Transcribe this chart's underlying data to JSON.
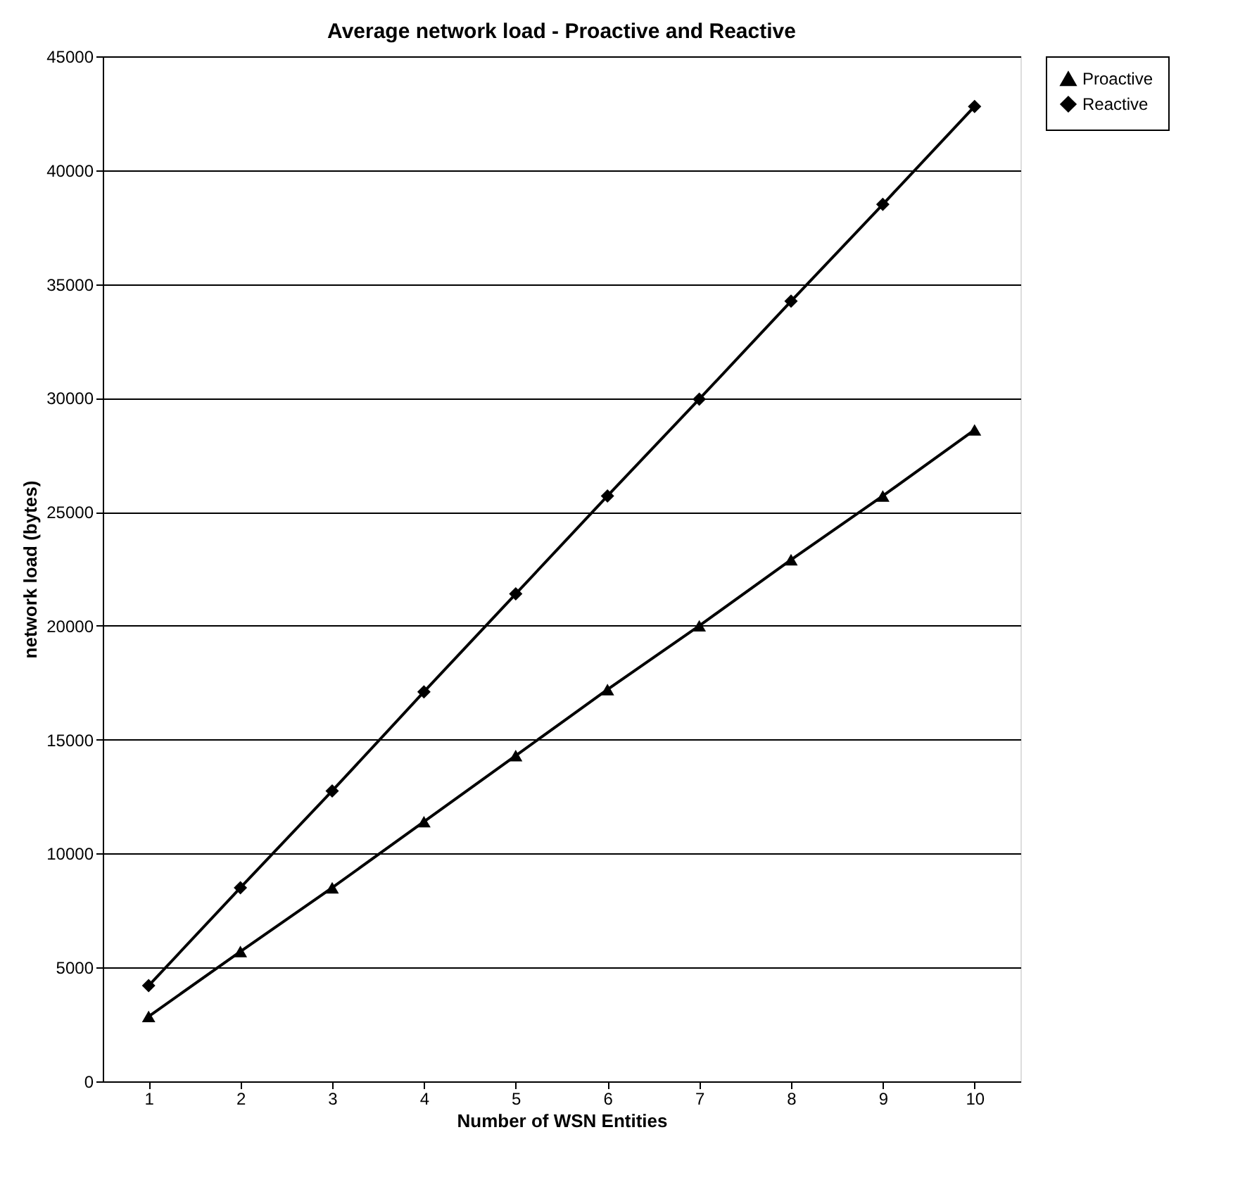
{
  "chart_data": {
    "type": "line",
    "title": "Average network load - Proactive and Reactive",
    "xlabel": "Number of WSN Entities",
    "ylabel": "network load (bytes)",
    "categories": [
      "1",
      "2",
      "3",
      "4",
      "5",
      "6",
      "7",
      "8",
      "9",
      "10"
    ],
    "series": [
      {
        "name": "Proactive",
        "color": "#000000",
        "marker": "triangle",
        "values": [
          2850,
          5700,
          8500,
          11400,
          14300,
          17200,
          20000,
          22900,
          25700,
          28600
        ]
      },
      {
        "name": "Reactive",
        "color": "#000000",
        "marker": "diamond",
        "values": [
          4200,
          8500,
          12750,
          17100,
          21400,
          25700,
          29950,
          34250,
          38500,
          42800
        ]
      }
    ],
    "ylim": [
      0,
      45000
    ],
    "yticks": [
      0,
      5000,
      10000,
      15000,
      20000,
      25000,
      30000,
      35000,
      40000,
      45000
    ],
    "grid": "y",
    "legend": "right",
    "line_style": "solid"
  }
}
